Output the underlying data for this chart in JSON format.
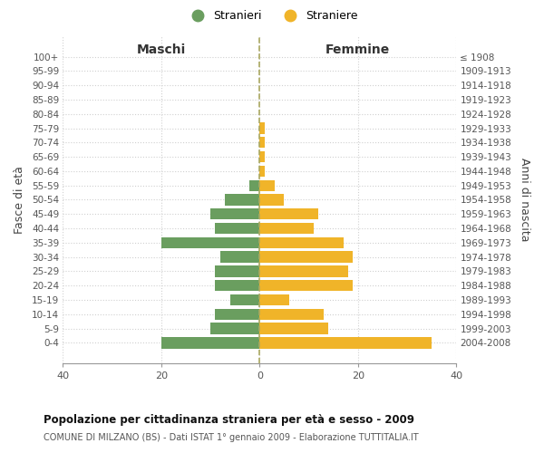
{
  "age_groups": [
    "0-4",
    "5-9",
    "10-14",
    "15-19",
    "20-24",
    "25-29",
    "30-34",
    "35-39",
    "40-44",
    "45-49",
    "50-54",
    "55-59",
    "60-64",
    "65-69",
    "70-74",
    "75-79",
    "80-84",
    "85-89",
    "90-94",
    "95-99",
    "100+"
  ],
  "birth_years": [
    "2004-2008",
    "1999-2003",
    "1994-1998",
    "1989-1993",
    "1984-1988",
    "1979-1983",
    "1974-1978",
    "1969-1973",
    "1964-1968",
    "1959-1963",
    "1954-1958",
    "1949-1953",
    "1944-1948",
    "1939-1943",
    "1934-1938",
    "1929-1933",
    "1924-1928",
    "1919-1923",
    "1914-1918",
    "1909-1913",
    "≤ 1908"
  ],
  "males": [
    20,
    10,
    9,
    6,
    9,
    9,
    8,
    20,
    9,
    10,
    7,
    2,
    0,
    0,
    0,
    0,
    0,
    0,
    0,
    0,
    0
  ],
  "females": [
    35,
    14,
    13,
    6,
    19,
    18,
    19,
    17,
    11,
    12,
    5,
    3,
    1,
    1,
    1,
    1,
    0,
    0,
    0,
    0,
    0
  ],
  "male_color": "#6a9e5f",
  "female_color": "#f0b429",
  "title": "Popolazione per cittadinanza straniera per età e sesso - 2009",
  "subtitle": "COMUNE DI MILZANO (BS) - Dati ISTAT 1° gennaio 2009 - Elaborazione TUTTITALIA.IT",
  "xlabel_left": "Maschi",
  "xlabel_right": "Femmine",
  "ylabel_left": "Fasce di età",
  "ylabel_right": "Anni di nascita",
  "legend_male": "Stranieri",
  "legend_female": "Straniere",
  "xlim": 40,
  "background_color": "#ffffff",
  "grid_color": "#d0d0d0",
  "axis_color": "#999999"
}
